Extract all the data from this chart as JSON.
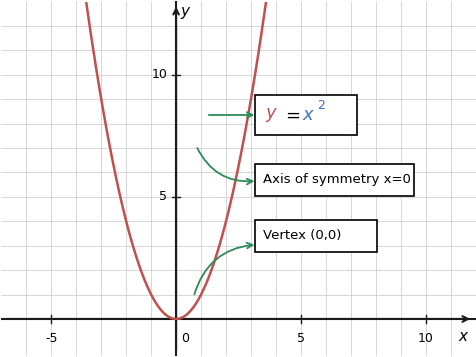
{
  "xlim": [
    -7,
    12
  ],
  "ylim": [
    -1.5,
    13
  ],
  "xtick_vals": [
    -5,
    5,
    10
  ],
  "ytick_vals": [
    5,
    10
  ],
  "xlabel": "x",
  "ylabel": "y",
  "curve_color": "#c0504d",
  "curve_linewidth": 1.8,
  "axis_color": "#1a1a1a",
  "grid_color": "#c8c8c8",
  "background_color": "#ffffff",
  "annotation_color": "#2e8b57",
  "box_label2": "Axis of symmetry x=0",
  "box_label3": "Vertex (0,0)",
  "equation_y_color": "#c0504d",
  "equation_x_color": "#4472c4",
  "zero_label": "0"
}
